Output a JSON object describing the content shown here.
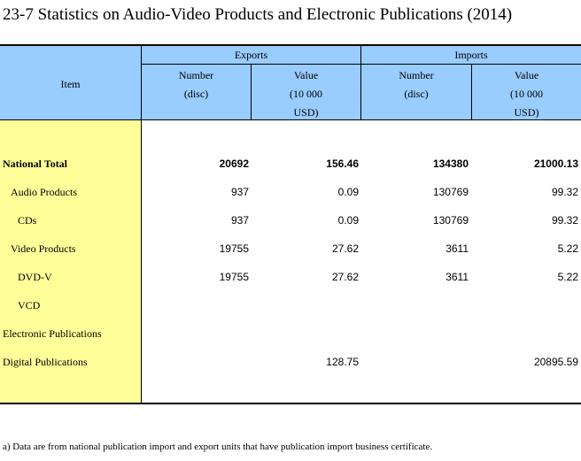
{
  "title": "23-7  Statistics on Audio-Video Products and Electronic Publications (2014)",
  "header": {
    "item": "Item",
    "exports": "Exports",
    "imports": "Imports",
    "number_line1": "Number",
    "number_line2": "(disc)",
    "value_line1": "Value",
    "value_line2": "(10 000",
    "value_line3": "USD)"
  },
  "rows": [
    {
      "label": "National Total",
      "exp_number": "20692",
      "exp_value": "156.46",
      "imp_number": "134380",
      "imp_value": "21000.13"
    },
    {
      "label": "Audio Products",
      "exp_number": "937",
      "exp_value": "0.09",
      "imp_number": "130769",
      "imp_value": "99.32"
    },
    {
      "label": "CDs",
      "exp_number": "937",
      "exp_value": "0.09",
      "imp_number": "130769",
      "imp_value": "99.32"
    },
    {
      "label": "Video Products",
      "exp_number": "19755",
      "exp_value": "27.62",
      "imp_number": "3611",
      "imp_value": "5.22"
    },
    {
      "label": "DVD-V",
      "exp_number": "19755",
      "exp_value": "27.62",
      "imp_number": "3611",
      "imp_value": "5.22"
    },
    {
      "label": "VCD",
      "exp_number": "",
      "exp_value": "",
      "imp_number": "",
      "imp_value": ""
    },
    {
      "label": "Electronic Publications",
      "exp_number": "",
      "exp_value": "",
      "imp_number": "",
      "imp_value": ""
    },
    {
      "label": "Digital Publications",
      "exp_number": "",
      "exp_value": "128.75",
      "imp_number": "",
      "imp_value": "20895.59"
    }
  ],
  "footnote": "a) Data are from national publication import and export units that have publication import business certificate."
}
